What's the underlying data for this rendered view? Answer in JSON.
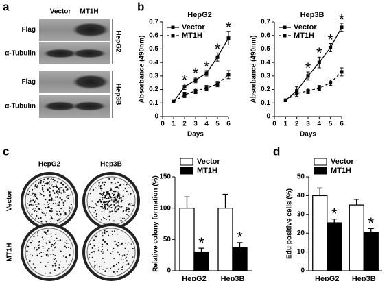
{
  "panel_labels": [
    "a",
    "b",
    "c",
    "d"
  ],
  "blot": {
    "columns": [
      "Vector",
      "MT1H"
    ],
    "groups": [
      {
        "name": "HepG2",
        "rows": [
          "Flag",
          "α-Tubulin"
        ]
      },
      {
        "name": "Hep3B",
        "rows": [
          "Flag",
          "α-Tubulin"
        ]
      }
    ]
  },
  "colony": {
    "columns": [
      "HepG2",
      "Hep3B"
    ],
    "rows": [
      "Vector",
      "MT1H"
    ]
  },
  "chart_data": [
    {
      "type": "line",
      "title": "HepG2",
      "x_label": "Days",
      "y_label": "Absorbance (490nm)",
      "x": [
        1,
        2,
        3,
        4,
        5,
        6
      ],
      "xlim": [
        0,
        6
      ],
      "xticks": [
        0,
        1,
        2,
        3,
        4,
        5,
        6
      ],
      "ylim": [
        0,
        0.7
      ],
      "yticks": [
        0,
        0.1,
        0.2,
        0.3,
        0.4,
        0.5,
        0.6,
        0.7
      ],
      "series": [
        {
          "name": "Vector",
          "color": "#000000",
          "line_style": "solid",
          "values": [
            0.11,
            0.22,
            0.27,
            0.32,
            0.44,
            0.58
          ],
          "errors": [
            0.01,
            0.02,
            0.02,
            0.02,
            0.03,
            0.05
          ]
        },
        {
          "name": "MT1H",
          "color": "#000000",
          "line_style": "dashed",
          "values": [
            0.11,
            0.16,
            0.19,
            0.21,
            0.24,
            0.31
          ],
          "errors": [
            0.01,
            0.02,
            0.02,
            0.02,
            0.02,
            0.03
          ]
        }
      ],
      "annotations": [
        {
          "x": 2,
          "label": "*"
        },
        {
          "x": 3,
          "label": "*"
        },
        {
          "x": 4,
          "label": "*"
        },
        {
          "x": 5,
          "label": "*"
        },
        {
          "x": 6,
          "label": "*"
        }
      ]
    },
    {
      "type": "line",
      "title": "Hep3B",
      "x_label": "Days",
      "y_label": "Absorbance (490nm)",
      "x": [
        1,
        2,
        3,
        4,
        5,
        6
      ],
      "xlim": [
        0,
        6
      ],
      "xticks": [
        0,
        1,
        2,
        3,
        4,
        5,
        6
      ],
      "ylim": [
        0,
        0.7
      ],
      "yticks": [
        0,
        0.1,
        0.2,
        0.3,
        0.4,
        0.5,
        0.6,
        0.7
      ],
      "series": [
        {
          "name": "Vector",
          "color": "#000000",
          "line_style": "solid",
          "values": [
            0.12,
            0.19,
            0.3,
            0.4,
            0.51,
            0.66
          ],
          "errors": [
            0.01,
            0.03,
            0.03,
            0.04,
            0.03,
            0.03
          ]
        },
        {
          "name": "MT1H",
          "color": "#000000",
          "line_style": "dashed",
          "values": [
            0.12,
            0.17,
            0.19,
            0.21,
            0.25,
            0.33
          ],
          "errors": [
            0.01,
            0.02,
            0.02,
            0.02,
            0.02,
            0.03
          ]
        }
      ],
      "annotations": [
        {
          "x": 3,
          "label": "*"
        },
        {
          "x": 4,
          "label": "*"
        },
        {
          "x": 5,
          "label": "*"
        },
        {
          "x": 6,
          "label": "*"
        }
      ]
    },
    {
      "type": "bar",
      "y_label": "Relative colony formation (%)",
      "categories": [
        "HepG2",
        "Hep3B"
      ],
      "ylim": [
        0,
        150
      ],
      "yticks": [
        0,
        50,
        100,
        150
      ],
      "series": [
        {
          "name": "Vector",
          "color": "#ffffff",
          "values": [
            100,
            100
          ],
          "errors": [
            18,
            22
          ]
        },
        {
          "name": "MT1H",
          "color": "#000000",
          "values": [
            30,
            37
          ],
          "errors": [
            6,
            8
          ]
        }
      ],
      "annotations": [
        {
          "category": 0,
          "label": "*"
        },
        {
          "category": 1,
          "label": "*"
        }
      ]
    },
    {
      "type": "bar",
      "y_label": "Edu positive cells (%)",
      "categories": [
        "HepG2",
        "Hep3B"
      ],
      "ylim": [
        0,
        50
      ],
      "yticks": [
        0,
        10,
        20,
        30,
        40,
        50
      ],
      "series": [
        {
          "name": "Vector",
          "color": "#ffffff",
          "values": [
            40,
            35
          ],
          "errors": [
            4,
            3
          ]
        },
        {
          "name": "MT1H",
          "color": "#000000",
          "values": [
            25.5,
            20.5
          ],
          "errors": [
            2,
            2
          ]
        }
      ],
      "annotations": [
        {
          "category": 0,
          "label": "*"
        },
        {
          "category": 1,
          "label": "*"
        }
      ]
    }
  ]
}
